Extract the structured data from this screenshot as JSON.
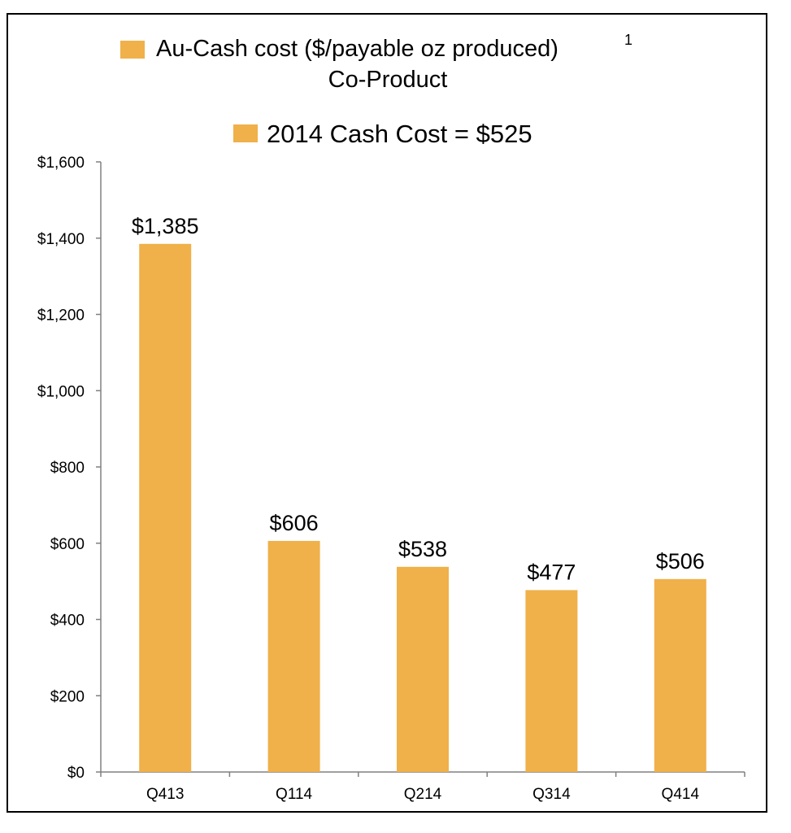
{
  "chart_data": {
    "type": "bar",
    "categories": [
      "Q413",
      "Q114",
      "Q214",
      "Q314",
      "Q414"
    ],
    "series": [
      {
        "name": "Au-Cash cost ($/payable oz produced) 1 Co-Product",
        "values": [
          1385,
          606,
          538,
          477,
          506
        ],
        "color": "#F0B04A"
      }
    ],
    "data_labels": [
      "$1,385",
      "$606",
      "$538",
      "$477",
      "$506"
    ],
    "legend": {
      "item1_line1": "Au-Cash cost ($/payable oz produced)",
      "item1_superscript": "1",
      "item1_line2": "Co-Product",
      "item2": "2014 Cash Cost = $525",
      "placement": "top"
    },
    "y_ticks": [
      0,
      200,
      400,
      600,
      800,
      1000,
      1200,
      1400,
      1600
    ],
    "y_tick_labels": [
      "$0",
      "$200",
      "$400",
      "$600",
      "$800",
      "$1,000",
      "$1,200",
      "$1,400",
      "$1,600"
    ],
    "ylim": [
      0,
      1600
    ],
    "grid": false,
    "bar_color": "#F0B04A"
  }
}
